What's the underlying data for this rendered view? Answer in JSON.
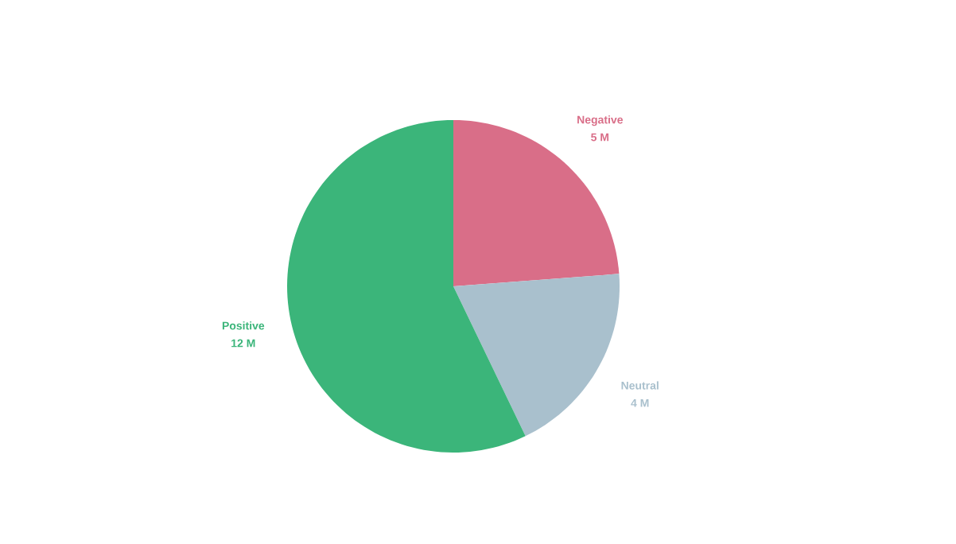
{
  "chart_data": {
    "type": "pie",
    "categories": [
      "Negative",
      "Neutral",
      "Positive"
    ],
    "values": [
      5,
      4,
      12
    ],
    "value_labels": [
      "5 M",
      "4 M",
      "12 M"
    ],
    "colors": [
      "#d96e88",
      "#a9c0cd",
      "#3bb57a"
    ]
  }
}
